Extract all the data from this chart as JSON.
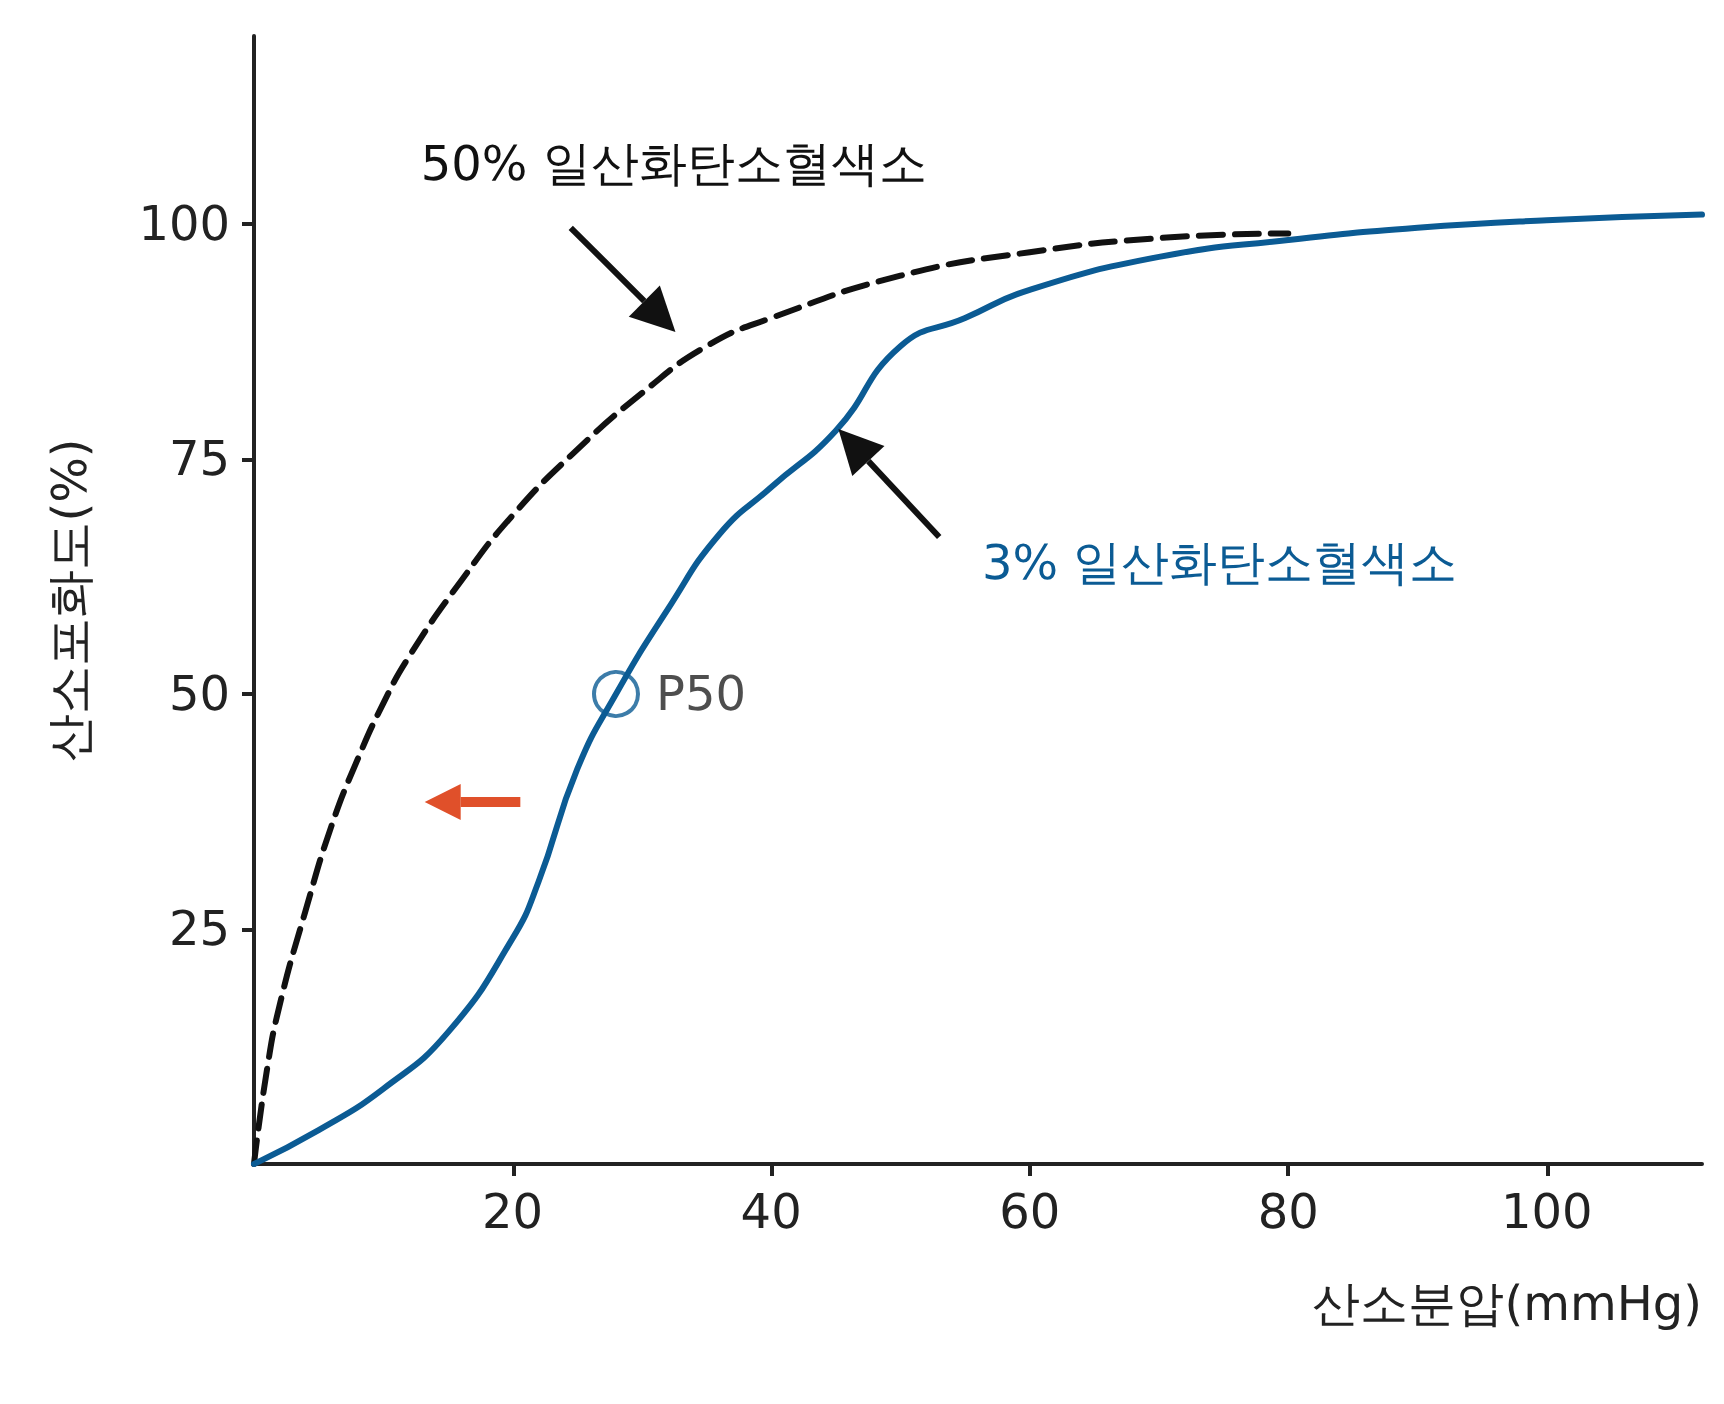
{
  "chart_data": {
    "type": "line",
    "xlabel": "산소분압(mmHg)",
    "ylabel": "산소포화도(%)",
    "xlim": [
      0,
      112
    ],
    "ylim": [
      0,
      120
    ],
    "xticks": [
      20,
      40,
      60,
      80,
      100
    ],
    "yticks": [
      25,
      50,
      75,
      100
    ],
    "grid": false,
    "legend": false,
    "marker": "none",
    "series": [
      {
        "name": "50% 일산화탄소혈색소",
        "color": "#111111",
        "line_style": "dashed",
        "x": [
          0,
          1,
          2,
          4,
          6,
          8,
          10,
          12,
          16,
          20,
          25,
          30,
          35,
          40,
          50,
          60,
          70,
          80
        ],
        "values": [
          0,
          10,
          17,
          27,
          36,
          43,
          49,
          54,
          62,
          69,
          76,
          82,
          87,
          90,
          94.5,
          97,
          98.5,
          99
        ]
      },
      {
        "name": "3% 일산화탄소혈색소",
        "color": "#0b5b94",
        "line_style": "solid",
        "x": [
          0,
          5,
          10,
          15,
          20,
          22,
          25,
          28,
          32,
          36,
          40,
          45,
          50,
          55,
          60,
          70,
          80,
          90,
          100,
          112
        ],
        "values": [
          0,
          3.6,
          8,
          14,
          24,
          30,
          42,
          50,
          59,
          67,
          72,
          78,
          87,
          90,
          93,
          96.5,
          98.3,
          99.6,
          100.4,
          101
        ]
      }
    ],
    "annotations": [
      {
        "text": "P50",
        "x": 28,
        "y": 50
      }
    ]
  }
}
